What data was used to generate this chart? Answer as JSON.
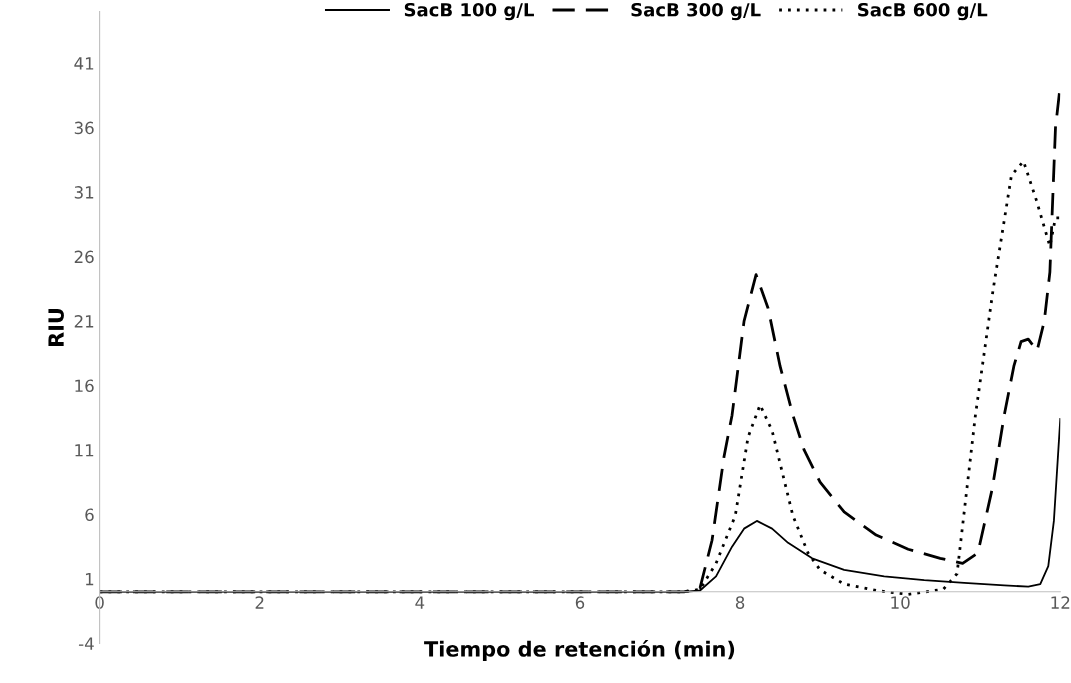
{
  "chart_data": {
    "type": "line",
    "xlabel": "Tiempo de retención (min)",
    "ylabel": "RIU",
    "xlim": [
      0,
      12
    ],
    "xticks": [
      0,
      2,
      4,
      6,
      8,
      10,
      12
    ],
    "ylim": [
      -4,
      45
    ],
    "yticks": [
      -4,
      1,
      6,
      11,
      16,
      21,
      26,
      31,
      36,
      41
    ],
    "grid": false,
    "legend": "top",
    "marker": "none",
    "series": [
      {
        "name": "SacB 100 g/L",
        "color": "#000000",
        "line_style": "solid",
        "x": [
          0,
          2,
          4,
          6,
          7.3,
          7.5,
          7.7,
          7.9,
          8.05,
          8.21,
          8.4,
          8.6,
          8.9,
          9.3,
          9.8,
          10.3,
          10.8,
          11.3,
          11.6,
          11.75,
          11.85,
          11.92,
          12
        ],
        "values": [
          0,
          0,
          0,
          0,
          0,
          0.1,
          1.2,
          3.5,
          4.9,
          5.5,
          4.9,
          3.8,
          2.6,
          1.7,
          1.2,
          0.9,
          0.7,
          0.5,
          0.4,
          0.6,
          2,
          5.5,
          13.4
        ]
      },
      {
        "name": "SacB 300 g/L",
        "color": "#000000",
        "line_style": "dashed",
        "x": [
          0,
          2,
          4,
          6,
          7.3,
          7.5,
          7.65,
          7.8,
          7.9,
          8.05,
          8.2,
          8.35,
          8.5,
          8.66,
          8.8,
          9,
          9.3,
          9.7,
          10.1,
          10.5,
          10.78,
          10.97,
          11.15,
          11.3,
          11.42,
          11.51,
          11.6,
          11.71,
          11.8,
          11.87,
          11.94,
          12
        ],
        "values": [
          0,
          0,
          0,
          0,
          0,
          0.3,
          4,
          10.5,
          13.7,
          21,
          24.6,
          22,
          17.5,
          13.7,
          11,
          8.5,
          6.2,
          4.4,
          3.3,
          2.6,
          2.2,
          3,
          8,
          13.7,
          17.5,
          19.4,
          19.6,
          18.7,
          21,
          24.8,
          36,
          39.3
        ]
      },
      {
        "name": "SacB 600 g/L",
        "color": "#000000",
        "line_style": "dotted",
        "x": [
          0,
          2,
          4,
          6,
          7.3,
          7.5,
          7.7,
          7.94,
          8.1,
          8.25,
          8.4,
          8.66,
          8.85,
          9,
          9.3,
          9.7,
          10.1,
          10.54,
          10.71,
          10.94,
          11.16,
          11.39,
          11.54,
          11.7,
          11.87,
          11.94,
          12
        ],
        "values": [
          0,
          0,
          0,
          0,
          0,
          0.2,
          2.2,
          5.9,
          12,
          14.5,
          12.5,
          5.9,
          3,
          1.7,
          0.6,
          0.1,
          -0.2,
          0.2,
          1.4,
          13.7,
          23.4,
          32.3,
          33.4,
          30.4,
          26.8,
          29,
          29
        ]
      }
    ]
  }
}
